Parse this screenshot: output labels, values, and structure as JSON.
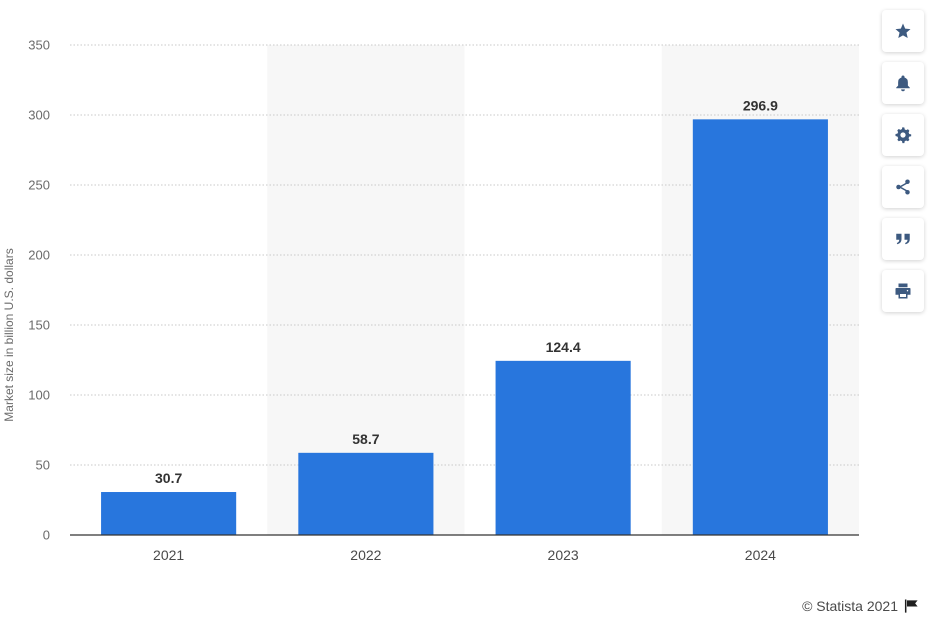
{
  "chart_data": {
    "type": "bar",
    "categories": [
      "2021",
      "2022",
      "2023",
      "2024"
    ],
    "values": [
      30.7,
      58.7,
      124.4,
      296.9
    ],
    "value_labels": [
      "30.7",
      "58.7",
      "124.4",
      "296.9"
    ],
    "title": "",
    "xlabel": "",
    "ylabel": "Market size in billion U.S. dollars",
    "ylim": [
      0,
      350
    ],
    "yticks": [
      0,
      50,
      100,
      150,
      200,
      250,
      300,
      350
    ],
    "grid": true,
    "bar_color": "#2876dd",
    "band_color": "#f7f7f7"
  },
  "toolbar": {
    "buttons": [
      {
        "name": "favorite-button",
        "icon": "star-icon"
      },
      {
        "name": "notification-button",
        "icon": "bell-icon"
      },
      {
        "name": "settings-button",
        "icon": "gear-icon"
      },
      {
        "name": "share-button",
        "icon": "share-icon"
      },
      {
        "name": "cite-button",
        "icon": "quote-icon"
      },
      {
        "name": "print-button",
        "icon": "print-icon"
      }
    ]
  },
  "footer": {
    "copyright": "© Statista 2021",
    "flag_icon": "flag-icon"
  }
}
